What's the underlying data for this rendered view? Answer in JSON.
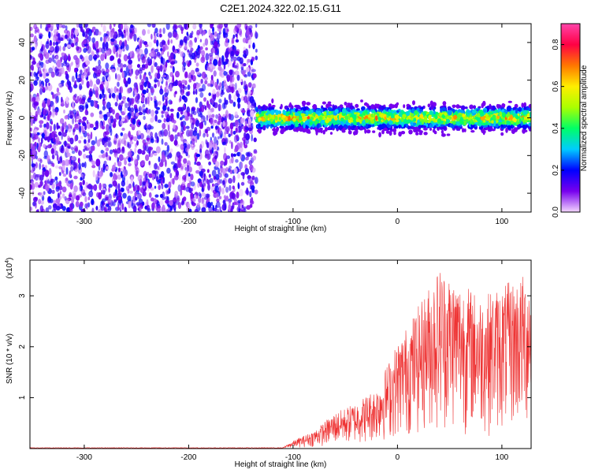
{
  "title": "C2E1.2024.322.02.15.G11",
  "chart_data": [
    {
      "type": "heatmap",
      "xlabel": "Height of straight line (km)",
      "ylabel": "Frequency (Hz)",
      "xlim": [
        -352,
        128
      ],
      "ylim": [
        -50,
        50
      ],
      "x_ticks": [
        -300,
        -200,
        -100,
        0,
        100
      ],
      "x_tick_labels": [
        "-300",
        "-200",
        "-100",
        "0",
        "100"
      ],
      "y_ticks": [
        -40,
        -20,
        0,
        20,
        40
      ],
      "y_tick_labels": [
        "-40",
        "-20",
        "0",
        "20",
        "40"
      ],
      "colorbar": {
        "label": "Normalized spectral amplitude",
        "range": [
          0,
          0.9
        ],
        "ticks": [
          0.0,
          0.2,
          0.4,
          0.6,
          0.8
        ],
        "tick_labels": [
          "0.0",
          "0.2",
          "0.4",
          "0.6",
          "0.8"
        ],
        "colors": [
          "#f4d6ff",
          "#7700ee",
          "#0000ff",
          "#00ccff",
          "#00ff66",
          "#aaff00",
          "#ffee00",
          "#ff7700",
          "#ff0044",
          "#ff44aa"
        ]
      },
      "regions": [
        {
          "x_range": [
            -352,
            -135
          ],
          "y_range": [
            -50,
            50
          ],
          "amplitude": [
            0.0,
            0.2
          ],
          "description_level": "noise"
        },
        {
          "x_range": [
            -135,
            128
          ],
          "y_range": [
            -10,
            10
          ],
          "center_y": 0,
          "amplitude": [
            0.1,
            0.7
          ]
        }
      ]
    },
    {
      "type": "line",
      "xlabel": "Height of straight line (km)",
      "ylabel": "SNR (10 * v/v)",
      "y_scale_label": "(x10^4)",
      "y_scale_base": "(x10",
      "y_scale_exp": "4",
      "y_scale_close": ")",
      "xlim": [
        -352,
        128
      ],
      "ylim": [
        0,
        3.7
      ],
      "x_ticks": [
        -300,
        -200,
        -100,
        0,
        100
      ],
      "x_tick_labels": [
        "-300",
        "-200",
        "-100",
        "0",
        "100"
      ],
      "y_ticks": [
        1,
        2,
        3
      ],
      "y_tick_labels": [
        "1",
        "2",
        "3"
      ],
      "series_color": "#ee3333",
      "envelope": [
        {
          "x": -352,
          "y": 0.02
        },
        {
          "x": -110,
          "y": 0.02
        },
        {
          "x": -100,
          "y": 0.15
        },
        {
          "x": -80,
          "y": 0.35
        },
        {
          "x": -60,
          "y": 0.7
        },
        {
          "x": -40,
          "y": 0.9
        },
        {
          "x": -20,
          "y": 1.2
        },
        {
          "x": 0,
          "y": 2.1
        },
        {
          "x": 20,
          "y": 2.8
        },
        {
          "x": 40,
          "y": 3.6
        },
        {
          "x": 60,
          "y": 3.3
        },
        {
          "x": 80,
          "y": 3.0
        },
        {
          "x": 100,
          "y": 3.2
        },
        {
          "x": 128,
          "y": 3.5
        }
      ]
    }
  ]
}
